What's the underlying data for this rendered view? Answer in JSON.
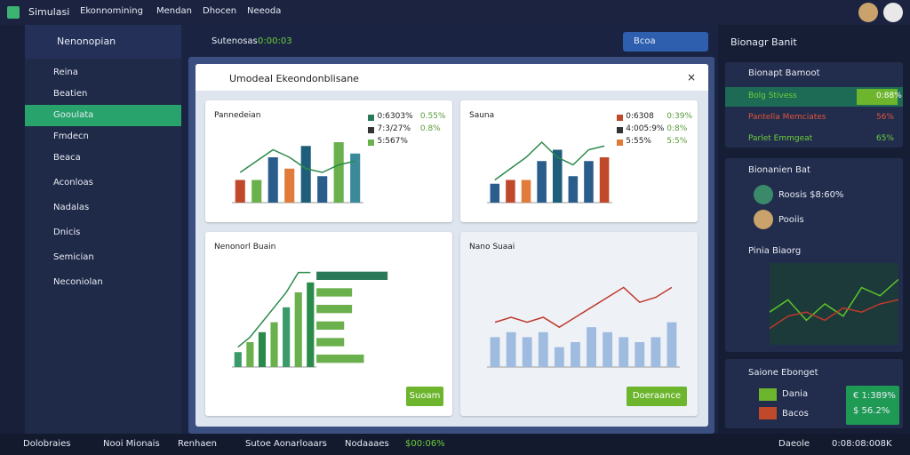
{
  "topbar": {
    "app": "Simulasi",
    "menu": [
      "Ekonnomining",
      "Mendan",
      "Dhocen",
      "Neeoda"
    ]
  },
  "sidebar": {
    "title": "Nenonopian",
    "items": [
      "Reina",
      "Beatien",
      "Gooulata",
      "Fmdecn",
      "Beaca",
      "Aconloas",
      "Nadalas",
      "Dnicis",
      "Semician",
      "Neconiolan"
    ],
    "active": 2
  },
  "toolbar": {
    "label": "Sutenosas",
    "value": "0:00:03",
    "button": "Bcoa"
  },
  "window": {
    "title": "Umodeal Ekeondonblisane"
  },
  "panels": [
    {
      "title": "Pannedeian",
      "legend": [
        "0:6303%",
        "7:3/27%",
        "5:567%"
      ],
      "legend_colors": [
        "#2a7a5a",
        "#333333",
        "#6ab04c"
      ],
      "side": [
        "0.55%",
        "0.8%"
      ],
      "bars": [
        30,
        30,
        60,
        45,
        75,
        35,
        80,
        65
      ],
      "bar_colors": [
        "#c0492b",
        "#6ab04c",
        "#2a5d8c",
        "#e07b39",
        "#1f5e7a",
        "#2a5d8c",
        "#6ab04c",
        "#3a8a9a"
      ],
      "line": [
        40,
        55,
        70,
        60,
        45,
        40,
        50,
        55
      ],
      "ylim": [
        0,
        100
      ]
    },
    {
      "title": "Sauna",
      "legend": [
        "0:6308",
        "4:005:9%",
        "5:55%"
      ],
      "legend_colors": [
        "#c0492b",
        "#333333",
        "#e07b39"
      ],
      "side": [
        "0:39%",
        "0:8%",
        "5:5%"
      ],
      "bars": [
        25,
        30,
        30,
        55,
        70,
        35,
        55,
        60
      ],
      "bar_colors": [
        "#2a5d8c",
        "#c0492b",
        "#e07b39",
        "#2a5d8c",
        "#1f5e7a",
        "#2a5d8c",
        "#2a5d8c",
        "#c0492b"
      ],
      "line": [
        30,
        45,
        60,
        80,
        60,
        50,
        70,
        75
      ],
      "ylim": [
        0,
        100
      ]
    },
    {
      "title": "Nenonorl Buain",
      "button": "Suoam",
      "bars": [
        15,
        25,
        35,
        45,
        60,
        75,
        85
      ],
      "bar_colors": [
        "#3a9a6a",
        "#6ab04c",
        "#2a8a4a",
        "#6ab04c",
        "#3a9a6a",
        "#6ab04c",
        "#2a8a4a"
      ],
      "line": [
        20,
        30,
        45,
        60,
        75,
        95,
        95
      ],
      "hbars": [
        90,
        45,
        45,
        35,
        35,
        60
      ],
      "ylim": [
        0,
        100
      ]
    },
    {
      "title": "Nano Suaai",
      "button": "Doeraance",
      "bars": [
        30,
        35,
        30,
        35,
        20,
        25,
        40,
        35,
        30,
        25,
        30,
        45
      ],
      "bar_colors": [
        "#9fbbe0",
        "#9fbbe0",
        "#9fbbe0",
        "#9fbbe0",
        "#9fbbe0",
        "#9fbbe0",
        "#9fbbe0",
        "#9fbbe0",
        "#9fbbe0",
        "#9fbbe0",
        "#9fbbe0",
        "#9fbbe0"
      ],
      "line": [
        45,
        50,
        45,
        50,
        40,
        50,
        60,
        70,
        80,
        65,
        70,
        80
      ],
      "ylim": [
        0,
        100
      ]
    }
  ],
  "right": {
    "title": "Bionagr Banit",
    "card1": {
      "title": "Bionapt Bamoot",
      "rows": [
        [
          "Bolg Stivess",
          "0:88%"
        ],
        [
          "Pantella Memciates",
          "56%"
        ],
        [
          "Parlet Emmgeat",
          "65%"
        ]
      ]
    },
    "card2": {
      "title": "Bionanien Bat",
      "rows": [
        "Roosis $8:60%",
        "Pooiis"
      ]
    },
    "card3": {
      "title": "Pinia Biaorg",
      "line": [
        40,
        55,
        30,
        50,
        35,
        70,
        60,
        80
      ],
      "line2": [
        20,
        35,
        40,
        30,
        45,
        40,
        50,
        55
      ],
      "ylim": [
        0,
        100
      ]
    },
    "card4": {
      "title": "Saione Ebonget",
      "rows": [
        "Dania",
        "Bacos"
      ],
      "boxes": [
        "€ 1:389%",
        "$ 56.2%"
      ]
    }
  },
  "bottombar": [
    "Dolobraies",
    "Nooi Mionais",
    "Renhaen",
    "Sutoe Aonarloaars",
    "Nodaaaes",
    "$00:06%",
    "Daeole",
    "0:08:08:008K"
  ]
}
